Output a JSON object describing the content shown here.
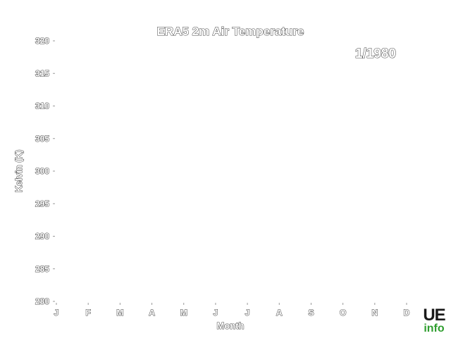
{
  "chart_data": {
    "type": "line",
    "title": "ERA5 2m Air Temperature",
    "date_label": "1/1980",
    "xlabel": "Month",
    "ylabel": "Kelvin (K)",
    "categories": [
      "J",
      "F",
      "M",
      "A",
      "M",
      "J",
      "J",
      "A",
      "S",
      "O",
      "N",
      "D"
    ],
    "y_ticks": [
      280,
      285,
      290,
      295,
      300,
      305,
      310,
      315,
      320
    ],
    "y_tick_labels": [
      "280",
      "285",
      "290",
      "295",
      "300",
      "305",
      "310",
      "315",
      "320"
    ],
    "ylim": [
      280,
      320
    ],
    "grid": false,
    "series": []
  },
  "logo": {
    "line1": "UE",
    "line2": "info"
  },
  "colors": {
    "text_outline": "#4a4a4a",
    "logo_green": "#2f9e2f",
    "logo_dark": "#1a1a1a"
  }
}
